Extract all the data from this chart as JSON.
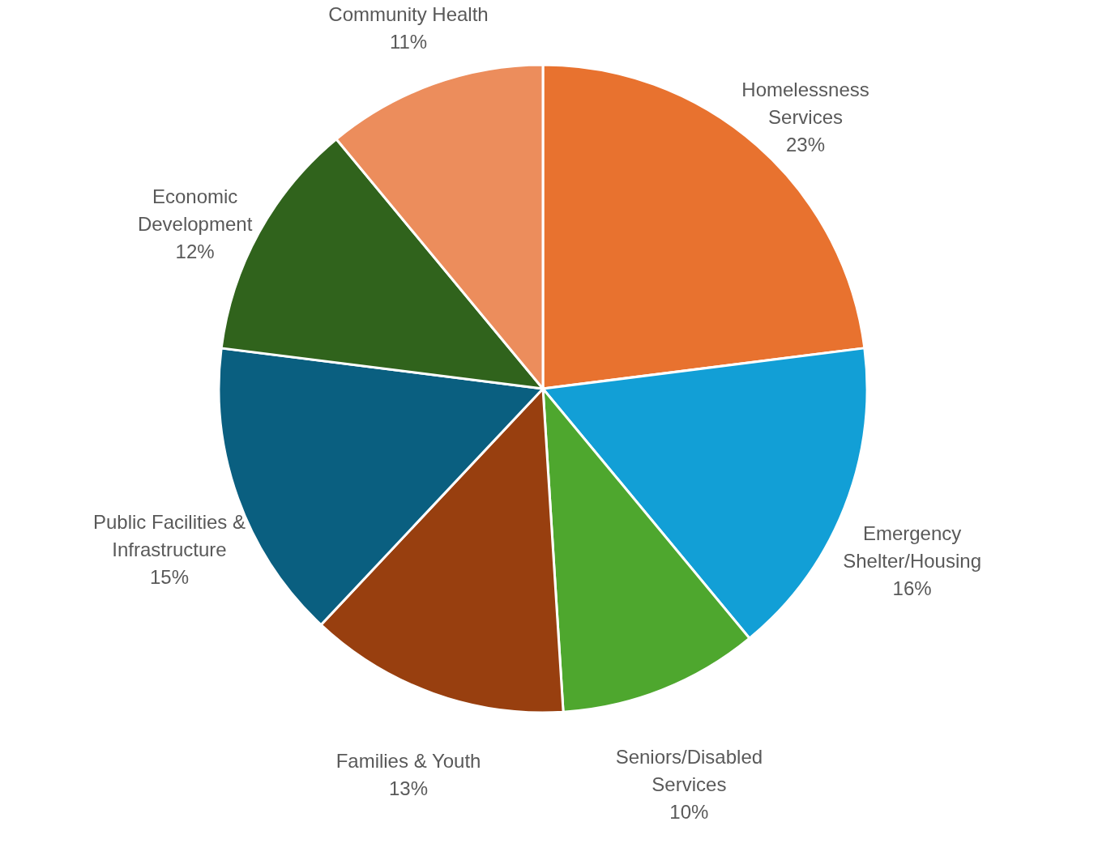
{
  "chart_data": {
    "type": "pie",
    "categories": [
      "Homelessness Services",
      "Emergency Shelter/Housing",
      "Seniors/Disabled Services",
      "Families & Youth",
      "Public Facilities & Infrastructure",
      "Economic Development",
      "Community Health"
    ],
    "values": [
      23,
      16,
      10,
      13,
      15,
      12,
      11
    ],
    "value_labels": [
      "23%",
      "16%",
      "10%",
      "13%",
      "15%",
      "12%",
      "11%"
    ],
    "colors": [
      "#e8722f",
      "#129fd6",
      "#4ea72e",
      "#983f0f",
      "#0a5f80",
      "#30631c",
      "#ec8d5c"
    ]
  }
}
